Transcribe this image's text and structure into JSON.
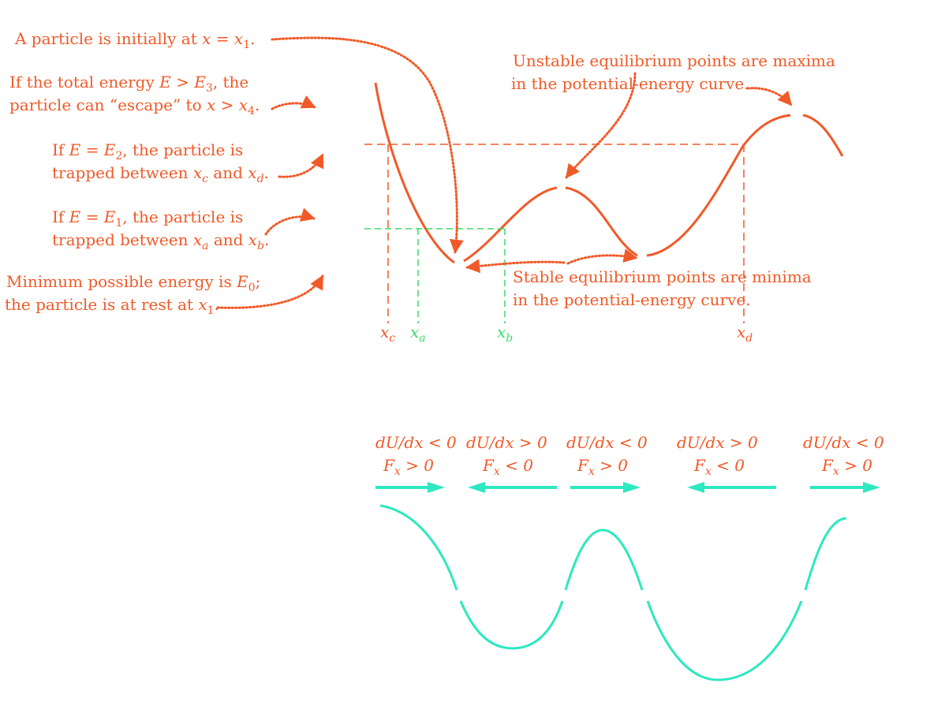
{
  "colors": {
    "orange": "#f05a28",
    "green": "#3adc6a",
    "teal": "#2de8c0",
    "background": "#ffffff"
  },
  "annotations": {
    "initial": "A particle is initially at x = x1.",
    "escape_line1": "If the total energy E > E3, the",
    "escape_line2": "particle can “escape” to x > x4.",
    "e2_line1": "If E = E2, the particle is",
    "e2_line2": "trapped between xc and xd.",
    "e1_line1": "If E = E1, the particle is",
    "e1_line2": "trapped between xa and xb.",
    "e0_line1": "Minimum possible energy is E0;",
    "e0_line2": "the particle is at rest at x1.",
    "unstable_line1": "Unstable equilibrium points are maxima",
    "unstable_line2": "in the potential-energy curve.",
    "stable_line1": "Stable equilibrium points are minima",
    "stable_line2": "in the potential-energy curve."
  },
  "axis_labels": {
    "xc": "xc",
    "xa": "xa",
    "xb": "xb",
    "xd": "xd"
  },
  "force_regions": [
    {
      "derivative": "dU/dx < 0",
      "force": "Fx > 0",
      "arrow": "right"
    },
    {
      "derivative": "dU/dx > 0",
      "force": "Fx < 0",
      "arrow": "left"
    },
    {
      "derivative": "dU/dx < 0",
      "force": "Fx > 0",
      "arrow": "right"
    },
    {
      "derivative": "dU/dx > 0",
      "force": "Fx < 0",
      "arrow": "left"
    },
    {
      "derivative": "dU/dx < 0",
      "force": "Fx > 0",
      "arrow": "right"
    }
  ]
}
